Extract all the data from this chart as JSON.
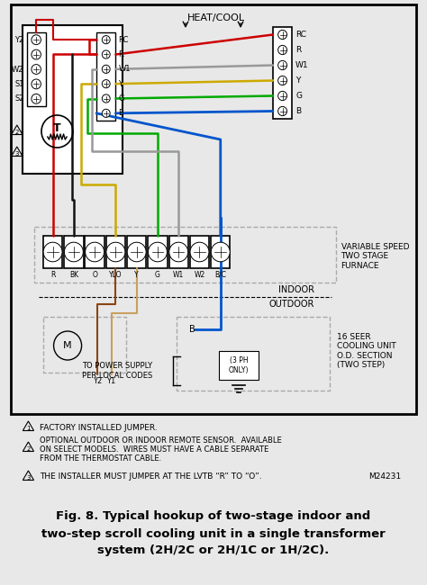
{
  "bg_color": "#e8e8e8",
  "white": "#ffffff",
  "black": "#000000",
  "gray": "#888888",
  "light_gray": "#cccccc",
  "dashed_box_color": "#aaaaaa",
  "title_line1": "Fig. 8. Typical hookup of two-stage indoor and",
  "title_line2": "two-step scroll cooling unit in a single transformer",
  "title_line3": "system (2H/2C or 2H/1C or 1H/2C).",
  "note1": "FACTORY INSTALLED JUMPER.",
  "note2_line1": "OPTIONAL OUTDOOR OR INDOOR REMOTE SENSOR.  AVAILABLE",
  "note2_line2": "ON SELECT MODELS.  WIRES MUST HAVE A CABLE SEPARATE",
  "note2_line3": "FROM THE THERMOSTAT CABLE.",
  "note3": "THE INSTALLER MUST JUMPER AT THE LVTB “R” TO “O”.",
  "model_num": "M24231",
  "heat_cool_label": "HEAT/COOL",
  "furnace_labels": [
    "R",
    "BK",
    "O",
    "YLO",
    "Y",
    "G",
    "W1",
    "W2",
    "B/C"
  ],
  "furnace_label": "VARIABLE SPEED\nTWO STAGE\nFURNACE",
  "indoor_label": "INDOOR",
  "outdoor_label": "OUTDOOR",
  "cooling_label": "16 SEER\nCOOLING UNIT\nO.D. SECTION\n(TWO STEP)",
  "power_label": "TO POWER SUPPLY\nPER LOCAL CODES",
  "ph_label": "(3 PH\nONLY)",
  "b_label": "B",
  "y2_label": "Y2",
  "y1_label": "Y1",
  "wire_red": "#cc0000",
  "wire_black": "#111111",
  "wire_yellow": "#ccaa00",
  "wire_green": "#00aa00",
  "wire_gray": "#999999",
  "wire_blue": "#0055cc",
  "wire_brown": "#8B4513",
  "wire_tan": "#c8a060"
}
